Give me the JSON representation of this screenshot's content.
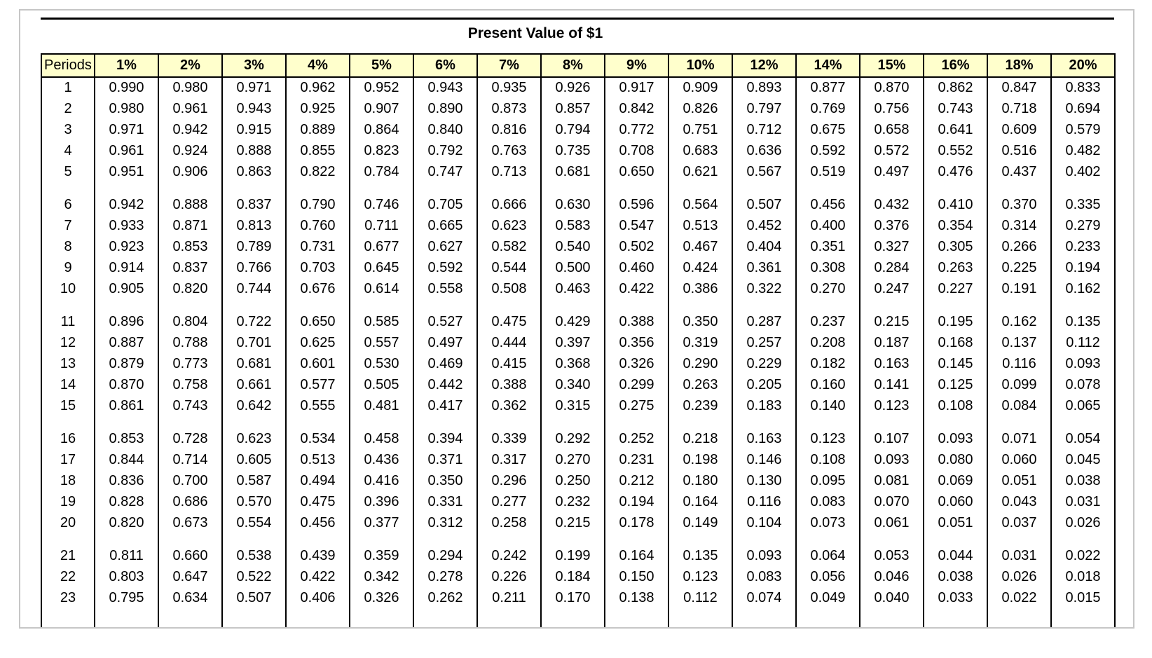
{
  "title": "Present Value of $1",
  "colors": {
    "header_bg": "#ffffcc",
    "table_border": "#000000",
    "frame_border": "#c6c6c6"
  },
  "table": {
    "corner_header": "Periods",
    "rate_headers": [
      "1%",
      "2%",
      "3%",
      "4%",
      "5%",
      "6%",
      "7%",
      "8%",
      "9%",
      "10%",
      "12%",
      "14%",
      "15%",
      "16%",
      "18%",
      "20%"
    ],
    "groups": [
      {
        "rows": [
          {
            "period": "1",
            "values": [
              "0.990",
              "0.980",
              "0.971",
              "0.962",
              "0.952",
              "0.943",
              "0.935",
              "0.926",
              "0.917",
              "0.909",
              "0.893",
              "0.877",
              "0.870",
              "0.862",
              "0.847",
              "0.833"
            ]
          },
          {
            "period": "2",
            "values": [
              "0.980",
              "0.961",
              "0.943",
              "0.925",
              "0.907",
              "0.890",
              "0.873",
              "0.857",
              "0.842",
              "0.826",
              "0.797",
              "0.769",
              "0.756",
              "0.743",
              "0.718",
              "0.694"
            ]
          },
          {
            "period": "3",
            "values": [
              "0.971",
              "0.942",
              "0.915",
              "0.889",
              "0.864",
              "0.840",
              "0.816",
              "0.794",
              "0.772",
              "0.751",
              "0.712",
              "0.675",
              "0.658",
              "0.641",
              "0.609",
              "0.579"
            ]
          },
          {
            "period": "4",
            "values": [
              "0.961",
              "0.924",
              "0.888",
              "0.855",
              "0.823",
              "0.792",
              "0.763",
              "0.735",
              "0.708",
              "0.683",
              "0.636",
              "0.592",
              "0.572",
              "0.552",
              "0.516",
              "0.482"
            ]
          },
          {
            "period": "5",
            "values": [
              "0.951",
              "0.906",
              "0.863",
              "0.822",
              "0.784",
              "0.747",
              "0.713",
              "0.681",
              "0.650",
              "0.621",
              "0.567",
              "0.519",
              "0.497",
              "0.476",
              "0.437",
              "0.402"
            ]
          }
        ]
      },
      {
        "rows": [
          {
            "period": "6",
            "values": [
              "0.942",
              "0.888",
              "0.837",
              "0.790",
              "0.746",
              "0.705",
              "0.666",
              "0.630",
              "0.596",
              "0.564",
              "0.507",
              "0.456",
              "0.432",
              "0.410",
              "0.370",
              "0.335"
            ]
          },
          {
            "period": "7",
            "values": [
              "0.933",
              "0.871",
              "0.813",
              "0.760",
              "0.711",
              "0.665",
              "0.623",
              "0.583",
              "0.547",
              "0.513",
              "0.452",
              "0.400",
              "0.376",
              "0.354",
              "0.314",
              "0.279"
            ]
          },
          {
            "period": "8",
            "values": [
              "0.923",
              "0.853",
              "0.789",
              "0.731",
              "0.677",
              "0.627",
              "0.582",
              "0.540",
              "0.502",
              "0.467",
              "0.404",
              "0.351",
              "0.327",
              "0.305",
              "0.266",
              "0.233"
            ]
          },
          {
            "period": "9",
            "values": [
              "0.914",
              "0.837",
              "0.766",
              "0.703",
              "0.645",
              "0.592",
              "0.544",
              "0.500",
              "0.460",
              "0.424",
              "0.361",
              "0.308",
              "0.284",
              "0.263",
              "0.225",
              "0.194"
            ]
          },
          {
            "period": "10",
            "values": [
              "0.905",
              "0.820",
              "0.744",
              "0.676",
              "0.614",
              "0.558",
              "0.508",
              "0.463",
              "0.422",
              "0.386",
              "0.322",
              "0.270",
              "0.247",
              "0.227",
              "0.191",
              "0.162"
            ]
          }
        ]
      },
      {
        "rows": [
          {
            "period": "11",
            "values": [
              "0.896",
              "0.804",
              "0.722",
              "0.650",
              "0.585",
              "0.527",
              "0.475",
              "0.429",
              "0.388",
              "0.350",
              "0.287",
              "0.237",
              "0.215",
              "0.195",
              "0.162",
              "0.135"
            ]
          },
          {
            "period": "12",
            "values": [
              "0.887",
              "0.788",
              "0.701",
              "0.625",
              "0.557",
              "0.497",
              "0.444",
              "0.397",
              "0.356",
              "0.319",
              "0.257",
              "0.208",
              "0.187",
              "0.168",
              "0.137",
              "0.112"
            ]
          },
          {
            "period": "13",
            "values": [
              "0.879",
              "0.773",
              "0.681",
              "0.601",
              "0.530",
              "0.469",
              "0.415",
              "0.368",
              "0.326",
              "0.290",
              "0.229",
              "0.182",
              "0.163",
              "0.145",
              "0.116",
              "0.093"
            ]
          },
          {
            "period": "14",
            "values": [
              "0.870",
              "0.758",
              "0.661",
              "0.577",
              "0.505",
              "0.442",
              "0.388",
              "0.340",
              "0.299",
              "0.263",
              "0.205",
              "0.160",
              "0.141",
              "0.125",
              "0.099",
              "0.078"
            ]
          },
          {
            "period": "15",
            "values": [
              "0.861",
              "0.743",
              "0.642",
              "0.555",
              "0.481",
              "0.417",
              "0.362",
              "0.315",
              "0.275",
              "0.239",
              "0.183",
              "0.140",
              "0.123",
              "0.108",
              "0.084",
              "0.065"
            ]
          }
        ]
      },
      {
        "rows": [
          {
            "period": "16",
            "values": [
              "0.853",
              "0.728",
              "0.623",
              "0.534",
              "0.458",
              "0.394",
              "0.339",
              "0.292",
              "0.252",
              "0.218",
              "0.163",
              "0.123",
              "0.107",
              "0.093",
              "0.071",
              "0.054"
            ]
          },
          {
            "period": "17",
            "values": [
              "0.844",
              "0.714",
              "0.605",
              "0.513",
              "0.436",
              "0.371",
              "0.317",
              "0.270",
              "0.231",
              "0.198",
              "0.146",
              "0.108",
              "0.093",
              "0.080",
              "0.060",
              "0.045"
            ]
          },
          {
            "period": "18",
            "values": [
              "0.836",
              "0.700",
              "0.587",
              "0.494",
              "0.416",
              "0.350",
              "0.296",
              "0.250",
              "0.212",
              "0.180",
              "0.130",
              "0.095",
              "0.081",
              "0.069",
              "0.051",
              "0.038"
            ]
          },
          {
            "period": "19",
            "values": [
              "0.828",
              "0.686",
              "0.570",
              "0.475",
              "0.396",
              "0.331",
              "0.277",
              "0.232",
              "0.194",
              "0.164",
              "0.116",
              "0.083",
              "0.070",
              "0.060",
              "0.043",
              "0.031"
            ]
          },
          {
            "period": "20",
            "values": [
              "0.820",
              "0.673",
              "0.554",
              "0.456",
              "0.377",
              "0.312",
              "0.258",
              "0.215",
              "0.178",
              "0.149",
              "0.104",
              "0.073",
              "0.061",
              "0.051",
              "0.037",
              "0.026"
            ]
          }
        ]
      },
      {
        "rows": [
          {
            "period": "21",
            "values": [
              "0.811",
              "0.660",
              "0.538",
              "0.439",
              "0.359",
              "0.294",
              "0.242",
              "0.199",
              "0.164",
              "0.135",
              "0.093",
              "0.064",
              "0.053",
              "0.044",
              "0.031",
              "0.022"
            ]
          },
          {
            "period": "22",
            "values": [
              "0.803",
              "0.647",
              "0.522",
              "0.422",
              "0.342",
              "0.278",
              "0.226",
              "0.184",
              "0.150",
              "0.123",
              "0.083",
              "0.056",
              "0.046",
              "0.038",
              "0.026",
              "0.018"
            ]
          },
          {
            "period": "23",
            "values": [
              "0.795",
              "0.634",
              "0.507",
              "0.406",
              "0.326",
              "0.262",
              "0.211",
              "0.170",
              "0.138",
              "0.112",
              "0.074",
              "0.049",
              "0.040",
              "0.033",
              "0.022",
              "0.015"
            ]
          }
        ]
      }
    ]
  }
}
